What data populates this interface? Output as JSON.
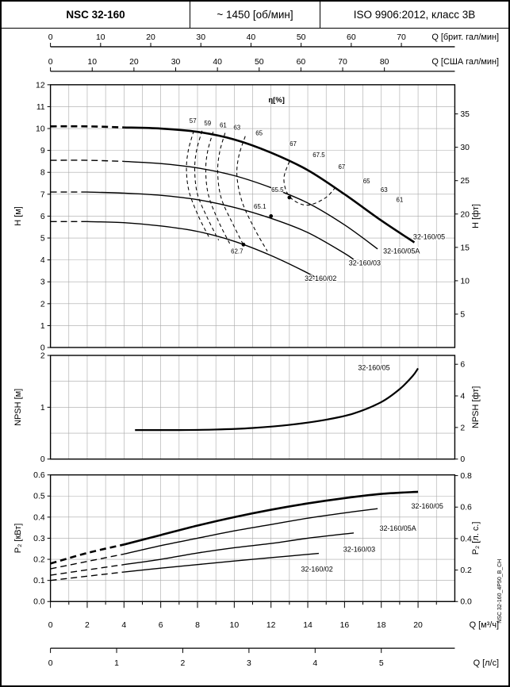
{
  "header": {
    "model": "NSC 32-160",
    "speed": "~ 1450 [об/мин]",
    "standard": "ISO 9906:2012, класс 3В"
  },
  "side_note": "NSC 32-160_4P50_B_CH",
  "q_axes": {
    "top1": {
      "label": "Q [брит. гал/мин]",
      "unit_to_m3h": 0.27276,
      "ticks": [
        [
          "0",
          0
        ],
        [
          "10",
          10
        ],
        [
          "20",
          20
        ],
        [
          "30",
          30
        ],
        [
          "40",
          40
        ],
        [
          "50",
          50
        ],
        [
          "60",
          60
        ],
        [
          "70",
          70
        ]
      ]
    },
    "top2": {
      "label": "Q [США гал/мин]",
      "unit_to_m3h": 0.22712,
      "ticks": [
        [
          "0",
          0
        ],
        [
          "10",
          10
        ],
        [
          "20",
          20
        ],
        [
          "30",
          30
        ],
        [
          "40",
          40
        ],
        [
          "50",
          50
        ],
        [
          "60",
          60
        ],
        [
          "70",
          70
        ],
        [
          "80",
          80
        ]
      ]
    },
    "bottom1": {
      "label": "Q [м³/ч]",
      "unit_to_m3h": 1,
      "ticks": [
        [
          "0",
          0
        ],
        [
          "2",
          2
        ],
        [
          "4",
          4
        ],
        [
          "6",
          6
        ],
        [
          "8",
          8
        ],
        [
          "10",
          10
        ],
        [
          "12",
          12
        ],
        [
          "14",
          14
        ],
        [
          "16",
          16
        ],
        [
          "18",
          18
        ],
        [
          "20",
          20
        ]
      ]
    },
    "bottom2": {
      "label": "Q [л/с]",
      "unit_to_m3h": 3.6,
      "ticks": [
        [
          "0",
          0
        ],
        [
          "1",
          1
        ],
        [
          "2",
          2
        ],
        [
          "3",
          3
        ],
        [
          "4",
          4
        ],
        [
          "5",
          5
        ]
      ]
    }
  },
  "chart_data": [
    {
      "type": "line",
      "id": "head",
      "title": "H-Q performance curves",
      "xlabel": "Q [м³/ч]",
      "ylabel_left": "H [м]",
      "ylabel_right": "H [фт]",
      "ylim": [
        0,
        12
      ],
      "xlim": [
        0,
        22
      ],
      "grid_step": 1,
      "right_factor": 0.3048,
      "yticks_left": [
        [
          "0",
          0
        ],
        [
          "1",
          1
        ],
        [
          "2",
          2
        ],
        [
          "3",
          3
        ],
        [
          "4",
          4
        ],
        [
          "5",
          5
        ],
        [
          "6",
          6
        ],
        [
          "7",
          7
        ],
        [
          "8",
          8
        ],
        [
          "9",
          9
        ],
        [
          "10",
          10
        ],
        [
          "11",
          11
        ],
        [
          "12",
          12
        ]
      ],
      "yticks_right": [
        [
          "5",
          5
        ],
        [
          "10",
          10
        ],
        [
          "15",
          15
        ],
        [
          "20",
          20
        ],
        [
          "25",
          25
        ],
        [
          "30",
          30
        ],
        [
          "35",
          35
        ]
      ],
      "eta_title": {
        "text": "η[%]",
        "q": 12.3,
        "v": 11.2
      },
      "series": [
        {
          "name": "32-160/05",
          "width": 2.6,
          "dash_until": 4.5,
          "points": [
            [
              0,
              10.1
            ],
            [
              2,
              10.1
            ],
            [
              4,
              10.05
            ],
            [
              6,
              10.0
            ],
            [
              8,
              9.85
            ],
            [
              10,
              9.5
            ],
            [
              12,
              8.9
            ],
            [
              14,
              8.1
            ],
            [
              16,
              7.0
            ],
            [
              18,
              5.8
            ],
            [
              19.8,
              4.8
            ]
          ],
          "label": {
            "text": "32-160/05",
            "q": 20.6,
            "v": 4.95
          }
        },
        {
          "name": "32-160/05A",
          "width": 1.4,
          "dash_until": 4.0,
          "points": [
            [
              0,
              8.55
            ],
            [
              2,
              8.55
            ],
            [
              4,
              8.5
            ],
            [
              6,
              8.4
            ],
            [
              8,
              8.2
            ],
            [
              10,
              7.85
            ],
            [
              12,
              7.3
            ],
            [
              14,
              6.6
            ],
            [
              16,
              5.6
            ],
            [
              17.8,
              4.5
            ]
          ],
          "label": {
            "text": "32-160/05A",
            "q": 19.1,
            "v": 4.3
          }
        },
        {
          "name": "32-160/03",
          "width": 1.4,
          "dash_until": 3.0,
          "points": [
            [
              0,
              7.1
            ],
            [
              2,
              7.1
            ],
            [
              4,
              7.05
            ],
            [
              6,
              6.95
            ],
            [
              8,
              6.75
            ],
            [
              10,
              6.4
            ],
            [
              12,
              5.9
            ],
            [
              14,
              5.25
            ],
            [
              16,
              4.3
            ],
            [
              16.6,
              3.95
            ]
          ],
          "label": {
            "text": "32-160/03",
            "q": 17.1,
            "v": 3.75
          }
        },
        {
          "name": "32-160/02",
          "width": 1.4,
          "dash_until": 2.5,
          "points": [
            [
              0,
              5.75
            ],
            [
              2,
              5.75
            ],
            [
              4,
              5.7
            ],
            [
              6,
              5.55
            ],
            [
              8,
              5.3
            ],
            [
              10,
              4.85
            ],
            [
              12,
              4.2
            ],
            [
              14,
              3.4
            ],
            [
              14.6,
              3.1
            ]
          ],
          "label": {
            "text": "32-160/02",
            "q": 14.7,
            "v": 3.05
          }
        }
      ],
      "eta_contours": [
        {
          "eta": "57",
          "points": [
            [
              7.8,
              9.9
            ],
            [
              7.5,
              9.0
            ],
            [
              7.4,
              8.1
            ],
            [
              7.55,
              7.1
            ],
            [
              8.05,
              6.0
            ],
            [
              8.65,
              5.0
            ]
          ]
        },
        {
          "eta": "59",
          "points": [
            [
              8.25,
              9.9
            ],
            [
              7.95,
              9.0
            ],
            [
              7.85,
              8.1
            ],
            [
              8.0,
              7.0
            ],
            [
              8.55,
              5.9
            ],
            [
              9.15,
              4.9
            ]
          ]
        },
        {
          "eta": "61",
          "points": [
            [
              8.85,
              9.85
            ],
            [
              8.55,
              8.95
            ],
            [
              8.45,
              8.05
            ],
            [
              8.6,
              6.95
            ],
            [
              9.15,
              5.75
            ],
            [
              9.75,
              4.75
            ]
          ]
        },
        {
          "eta": "63",
          "points": [
            [
              9.5,
              9.8
            ],
            [
              9.2,
              8.9
            ],
            [
              9.1,
              7.95
            ],
            [
              9.3,
              6.8
            ],
            [
              9.95,
              5.6
            ],
            [
              10.55,
              4.6
            ]
          ]
        },
        {
          "eta": "65",
          "points": [
            [
              10.6,
              9.65
            ],
            [
              10.25,
              8.75
            ],
            [
              10.15,
              7.8
            ],
            [
              10.45,
              6.6
            ],
            [
              11.15,
              5.35
            ],
            [
              11.8,
              4.4
            ]
          ]
        },
        {
          "eta": "67",
          "points": [
            [
              13.0,
              8.5
            ],
            [
              12.7,
              7.7
            ],
            [
              13.0,
              6.9
            ],
            [
              13.9,
              6.5
            ],
            [
              14.9,
              6.8
            ],
            [
              15.5,
              7.3
            ]
          ]
        }
      ],
      "eta_labels": [
        {
          "text": "57",
          "q": 7.75,
          "v": 10.25
        },
        {
          "text": "59",
          "q": 8.55,
          "v": 10.15
        },
        {
          "text": "61",
          "q": 9.4,
          "v": 10.05
        },
        {
          "text": "63",
          "q": 10.15,
          "v": 9.95
        },
        {
          "text": "65",
          "q": 11.35,
          "v": 9.7
        },
        {
          "text": "67",
          "q": 13.2,
          "v": 9.2
        },
        {
          "text": "67.5",
          "q": 14.6,
          "v": 8.7
        },
        {
          "text": "67",
          "q": 15.85,
          "v": 8.15
        },
        {
          "text": "65",
          "q": 17.2,
          "v": 7.5
        },
        {
          "text": "63",
          "q": 18.15,
          "v": 7.1
        },
        {
          "text": "61",
          "q": 19.0,
          "v": 6.65
        }
      ],
      "bep_points": [
        {
          "text": "65.5",
          "dot_q": 13.0,
          "dot_v": 6.85,
          "label_q": 12.35,
          "label_v": 7.1
        },
        {
          "text": "65.1",
          "dot_q": 12.0,
          "dot_v": 6.0,
          "label_q": 11.4,
          "label_v": 6.35
        },
        {
          "text": "62.7",
          "dot_q": 10.5,
          "dot_v": 4.7,
          "label_q": 10.15,
          "label_v": 4.3
        }
      ]
    },
    {
      "type": "line",
      "id": "npsh",
      "title": "NPSH curve",
      "xlabel": "Q [м³/ч]",
      "ylabel_left": "NPSH [м]",
      "ylabel_right": "NPSH [фт]",
      "ylim": [
        0,
        2
      ],
      "xlim": [
        0,
        22
      ],
      "grid_step": 0.5,
      "right_factor": 0.3048,
      "yticks_left": [
        [
          "0",
          0
        ],
        [
          "1",
          1
        ],
        [
          "2",
          2
        ]
      ],
      "yticks_right": [
        [
          "0",
          0
        ],
        [
          "2",
          2
        ],
        [
          "4",
          4
        ],
        [
          "6",
          6
        ]
      ],
      "series": [
        {
          "name": "32-160/05",
          "width": 2.2,
          "dash_until": 0,
          "points": [
            [
              4.6,
              0.56
            ],
            [
              7,
              0.56
            ],
            [
              9,
              0.57
            ],
            [
              11,
              0.6
            ],
            [
              13,
              0.66
            ],
            [
              15,
              0.76
            ],
            [
              16.5,
              0.88
            ],
            [
              18,
              1.1
            ],
            [
              19,
              1.35
            ],
            [
              19.7,
              1.6
            ],
            [
              20,
              1.75
            ]
          ],
          "label": {
            "text": "32-160/05",
            "q": 17.6,
            "v": 1.72
          }
        }
      ]
    },
    {
      "type": "line",
      "id": "power",
      "title": "P2-Q power curves",
      "xlabel": "Q [м³/ч]",
      "ylabel_left": "P₂ [кВт]",
      "ylabel_right": "P₂ [л. с.]",
      "ylim": [
        0,
        0.6
      ],
      "xlim": [
        0,
        22
      ],
      "grid_step": 0.1,
      "right_factor": 0.7457,
      "yticks_left": [
        [
          "0.0",
          0
        ],
        [
          "0.1",
          0.1
        ],
        [
          "0.2",
          0.2
        ],
        [
          "0.3",
          0.3
        ],
        [
          "0.4",
          0.4
        ],
        [
          "0.5",
          0.5
        ],
        [
          "0.6",
          0.6
        ]
      ],
      "yticks_right": [
        [
          "0.0",
          0
        ],
        [
          "0.2",
          0.2
        ],
        [
          "0.4",
          0.4
        ],
        [
          "0.6",
          0.6
        ],
        [
          "0.8",
          0.8
        ]
      ],
      "series": [
        {
          "name": "32-160/05",
          "width": 2.6,
          "dash_until": 4.5,
          "points": [
            [
              0,
              0.18
            ],
            [
              2,
              0.23
            ],
            [
              4,
              0.27
            ],
            [
              6,
              0.315
            ],
            [
              8,
              0.36
            ],
            [
              10,
              0.4
            ],
            [
              12,
              0.435
            ],
            [
              14,
              0.465
            ],
            [
              16,
              0.49
            ],
            [
              18,
              0.51
            ],
            [
              20,
              0.52
            ]
          ],
          "label": {
            "text": "32-160/05",
            "q": 20.5,
            "v": 0.44
          }
        },
        {
          "name": "32-160/05A",
          "width": 1.4,
          "dash_until": 4.5,
          "points": [
            [
              0,
              0.155
            ],
            [
              2,
              0.19
            ],
            [
              4,
              0.225
            ],
            [
              6,
              0.265
            ],
            [
              8,
              0.3
            ],
            [
              10,
              0.335
            ],
            [
              12,
              0.365
            ],
            [
              14,
              0.395
            ],
            [
              16,
              0.42
            ],
            [
              17.8,
              0.44
            ]
          ],
          "label": {
            "text": "32-160/05A",
            "q": 18.9,
            "v": 0.335
          }
        },
        {
          "name": "32-160/03",
          "width": 1.4,
          "dash_until": 4.5,
          "points": [
            [
              0,
              0.125
            ],
            [
              2,
              0.15
            ],
            [
              4,
              0.175
            ],
            [
              6,
              0.2
            ],
            [
              8,
              0.23
            ],
            [
              10,
              0.255
            ],
            [
              12,
              0.275
            ],
            [
              14,
              0.3
            ],
            [
              16.5,
              0.325
            ]
          ],
          "label": {
            "text": "32-160/03",
            "q": 16.8,
            "v": 0.235
          }
        },
        {
          "name": "32-160/02",
          "width": 1.4,
          "dash_until": 4.5,
          "points": [
            [
              0,
              0.1
            ],
            [
              2,
              0.12
            ],
            [
              4,
              0.14
            ],
            [
              6,
              0.158
            ],
            [
              8,
              0.175
            ],
            [
              10,
              0.192
            ],
            [
              12,
              0.208
            ],
            [
              14.6,
              0.228
            ]
          ],
          "label": {
            "text": "32-160/02",
            "q": 14.5,
            "v": 0.142
          }
        }
      ]
    }
  ]
}
